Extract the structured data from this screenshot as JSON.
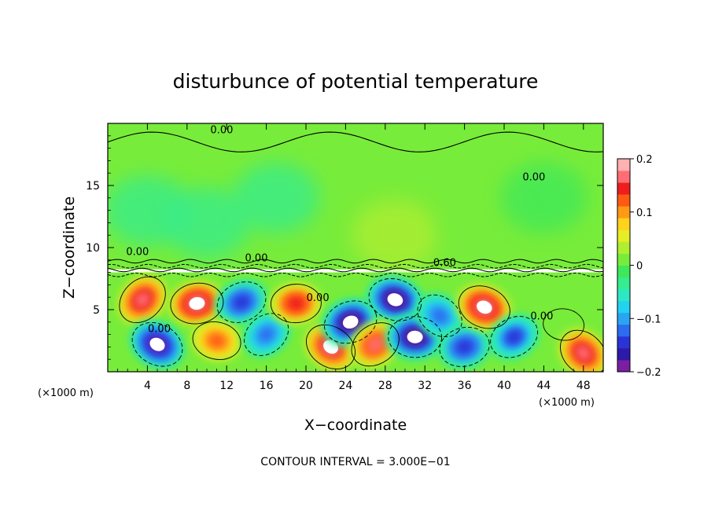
{
  "chart_data": {
    "type": "heatmap",
    "title": "disturbunce of potential temperature",
    "xlabel": "X−coordinate",
    "ylabel": "Z−coordinate",
    "x_unit": "(×1000 m)",
    "z_unit": "(×1000 m)",
    "xlim": [
      0,
      50
    ],
    "ylim": [
      0,
      20
    ],
    "x_ticks": [
      4,
      8,
      12,
      16,
      20,
      24,
      28,
      32,
      36,
      40,
      44,
      48
    ],
    "x_tick_labels": [
      "4",
      "8",
      "12",
      "16",
      "20",
      "24",
      "28",
      "32",
      "36",
      "40",
      "44",
      "48"
    ],
    "y_ticks": [
      5,
      10,
      15
    ],
    "y_tick_labels": [
      "5",
      "10",
      "15"
    ],
    "colorbar": {
      "range": [
        -0.2,
        0.2
      ],
      "ticks": [
        -0.2,
        -0.1,
        0,
        0.1,
        0.2
      ],
      "tick_labels": [
        "−0.2",
        "−0.1",
        "0",
        "0.1",
        "0.2"
      ],
      "colors": [
        "#7b1fa2",
        "#2e1aa8",
        "#2a33d6",
        "#2c6cf0",
        "#2aa5f2",
        "#22d2f0",
        "#2ee8c4",
        "#36ec8e",
        "#3ee85a",
        "#78ec3a",
        "#b0ee30",
        "#e6ec26",
        "#ffd21c",
        "#ff9a16",
        "#ff5a14",
        "#ee1e1e",
        "#ff6e74",
        "#ffb0b0"
      ]
    },
    "contour_interval": "CONTOUR INTERVAL = 3.000E−01",
    "contour_labels": [
      {
        "text": "0.00",
        "x": 11.5,
        "z": 19.2
      },
      {
        "text": "0.00",
        "x": 43.0,
        "z": 15.4
      },
      {
        "text": "0.00",
        "x": 3.0,
        "z": 9.4
      },
      {
        "text": "0.00",
        "x": 15.0,
        "z": 8.9
      },
      {
        "text": "0.60",
        "x": 34.0,
        "z": 8.5
      },
      {
        "text": "0.00",
        "x": 21.2,
        "z": 5.7
      },
      {
        "text": "0.00",
        "x": 43.8,
        "z": 4.2
      },
      {
        "text": "0.00",
        "x": 5.2,
        "z": 3.2
      }
    ],
    "field_summary": {
      "upper_layer": {
        "z_range": [
          8.5,
          20
        ],
        "value_range": [
          -0.04,
          0.03
        ],
        "dominant_value": 0.0
      },
      "lower_layer": {
        "z_range": [
          0,
          8.0
        ],
        "value_range": [
          -0.2,
          0.2
        ]
      },
      "blobs": [
        {
          "x": 3.5,
          "z": 5.8,
          "value": 0.17
        },
        {
          "x": 9.0,
          "z": 5.5,
          "value": 0.19
        },
        {
          "x": 5.0,
          "z": 2.2,
          "value": -0.19
        },
        {
          "x": 13.5,
          "z": 5.6,
          "value": -0.15
        },
        {
          "x": 11.0,
          "z": 2.5,
          "value": 0.12
        },
        {
          "x": 16.0,
          "z": 3.0,
          "value": -0.12
        },
        {
          "x": 19.0,
          "z": 5.5,
          "value": 0.15
        },
        {
          "x": 22.5,
          "z": 2.0,
          "value": 0.18
        },
        {
          "x": 24.5,
          "z": 4.0,
          "value": -0.2
        },
        {
          "x": 29.0,
          "z": 5.8,
          "value": -0.2
        },
        {
          "x": 27.0,
          "z": 2.2,
          "value": 0.16
        },
        {
          "x": 31.0,
          "z": 2.8,
          "value": -0.2
        },
        {
          "x": 33.5,
          "z": 4.5,
          "value": -0.12
        },
        {
          "x": 36.0,
          "z": 2.0,
          "value": -0.15
        },
        {
          "x": 38.0,
          "z": 5.2,
          "value": 0.19
        },
        {
          "x": 41.0,
          "z": 2.8,
          "value": -0.14
        },
        {
          "x": 46.0,
          "z": 3.8,
          "value": 0.0
        },
        {
          "x": 48.0,
          "z": 1.5,
          "value": 0.17
        }
      ]
    }
  }
}
